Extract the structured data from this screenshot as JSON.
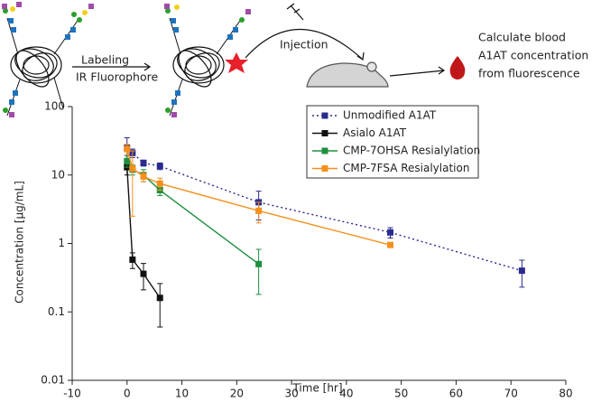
{
  "chart_data": {
    "type": "line",
    "annotations": [
      "Labeling",
      "IR Fluorophore",
      "Injection",
      "Calculate blood",
      "A1AT concentration",
      "from fluorescence"
    ],
    "x_label": "Time [hr]",
    "y_label": "Concentration [µg/mL]",
    "xlim": [
      -10,
      80
    ],
    "xticks": [
      -10,
      0,
      10,
      20,
      30,
      40,
      50,
      60,
      70,
      80
    ],
    "ylim": [
      0.01,
      100
    ],
    "yticks": [
      0.01,
      0.1,
      1,
      10,
      100
    ],
    "log_y": true,
    "series": [
      {
        "name": "Unmodified A1AT",
        "color": "#2b2b8f",
        "dashed": true,
        "x": [
          0,
          1,
          3,
          6,
          24,
          48,
          72
        ],
        "values": [
          25,
          21,
          15,
          13.5,
          4,
          1.45,
          0.4
        ],
        "errors": [
          10,
          3,
          1.5,
          1.5,
          1.8,
          0.25,
          0.17
        ]
      },
      {
        "name": "Asialo A1AT",
        "color": "#111111",
        "dashed": false,
        "x": [
          0,
          1,
          3,
          6
        ],
        "values": [
          13,
          0.58,
          0.36,
          0.16
        ],
        "errors": [
          3,
          0.15,
          0.15,
          0.1
        ]
      },
      {
        "name": "CMP-7OHSA Resialylation",
        "color": "#1f8f3f",
        "dashed": false,
        "x": [
          0,
          1,
          3,
          6,
          24
        ],
        "values": [
          16,
          12,
          10,
          6,
          0.5
        ],
        "errors": [
          3,
          2,
          2,
          1,
          0.32
        ]
      },
      {
        "name": "CMP-7FSA Resialylation",
        "color": "#f5901e",
        "dashed": false,
        "x": [
          0,
          1,
          3,
          6,
          24,
          48
        ],
        "values": [
          24,
          12.5,
          9.5,
          7.5,
          3,
          0.95
        ],
        "errors": [
          4,
          10,
          1.5,
          1.5,
          1,
          0.05
        ]
      }
    ],
    "legend": "top-right"
  }
}
